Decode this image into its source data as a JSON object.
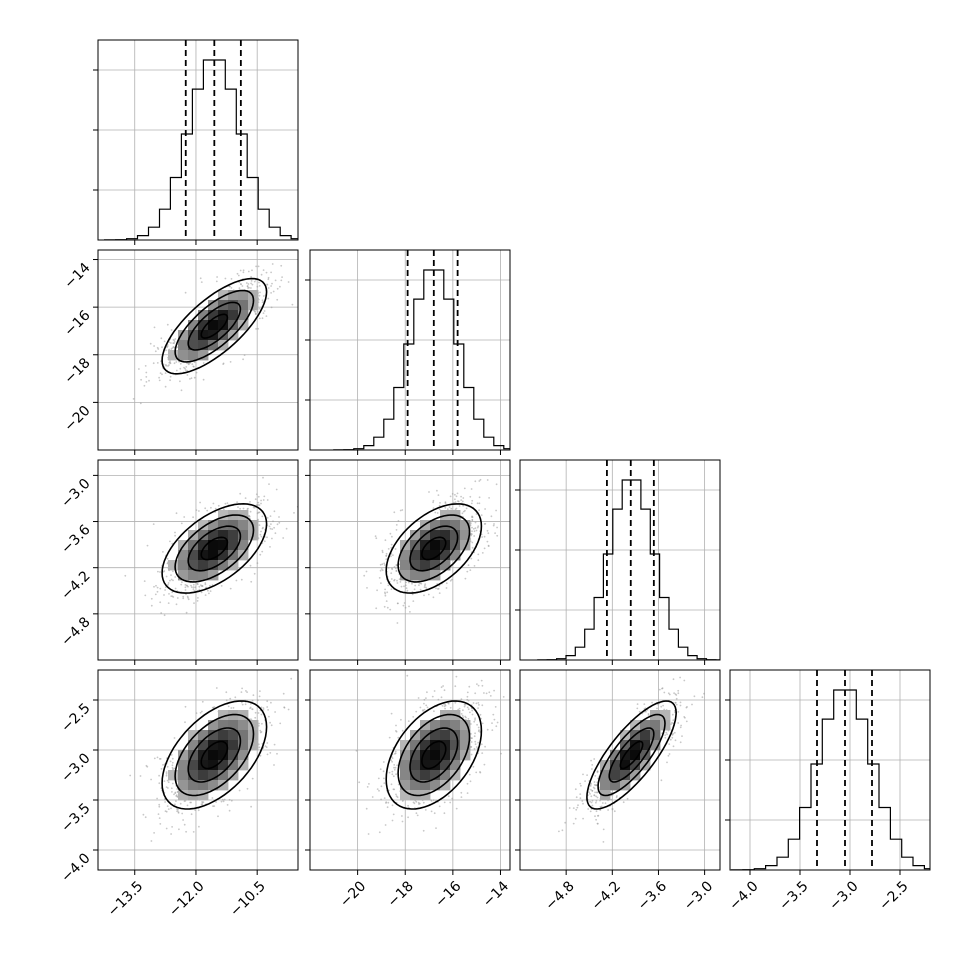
{
  "chart_data": {
    "type": "corner",
    "grid": true,
    "dims": [
      {
        "range": [
          -14.4,
          -9.5
        ],
        "ticks": [
          "−13.5",
          "−12.0",
          "−10.5"
        ],
        "tick_values": [
          -13.5,
          -12.0,
          -10.5
        ],
        "mean": -11.55,
        "std": 0.64,
        "quantiles": [
          -12.25,
          -11.55,
          -10.9
        ]
      },
      {
        "range": [
          -22.0,
          -13.6
        ],
        "ticks": [
          "−20",
          "−18",
          "−16",
          "−14"
        ],
        "tick_values": [
          -20,
          -18,
          -16,
          -14
        ],
        "mean": -16.8,
        "std": 1.0,
        "quantiles": [
          -17.9,
          -16.8,
          -15.8
        ]
      },
      {
        "range": [
          -5.4,
          -2.8
        ],
        "ticks": [
          "−4.8",
          "−4.2",
          "−3.6",
          "−3.0"
        ],
        "tick_values": [
          -4.8,
          -4.2,
          -3.6,
          -3.0
        ],
        "mean": -3.95,
        "std": 0.29,
        "quantiles": [
          -4.27,
          -3.96,
          -3.66
        ]
      },
      {
        "range": [
          -4.2,
          -2.2
        ],
        "ticks": [
          "−4.0",
          "−3.5",
          "−3.0",
          "−2.5"
        ],
        "tick_values": [
          -4.0,
          -3.5,
          -3.0,
          -2.5
        ],
        "mean": -3.05,
        "std": 0.27,
        "quantiles": [
          -3.33,
          -3.05,
          -2.78
        ]
      }
    ],
    "correlations": [
      [
        0,
        1,
        0.72
      ],
      [
        0,
        2,
        0.55
      ],
      [
        0,
        3,
        0.52
      ],
      [
        1,
        2,
        0.5
      ],
      [
        1,
        3,
        0.45
      ],
      [
        2,
        3,
        0.78
      ]
    ]
  }
}
